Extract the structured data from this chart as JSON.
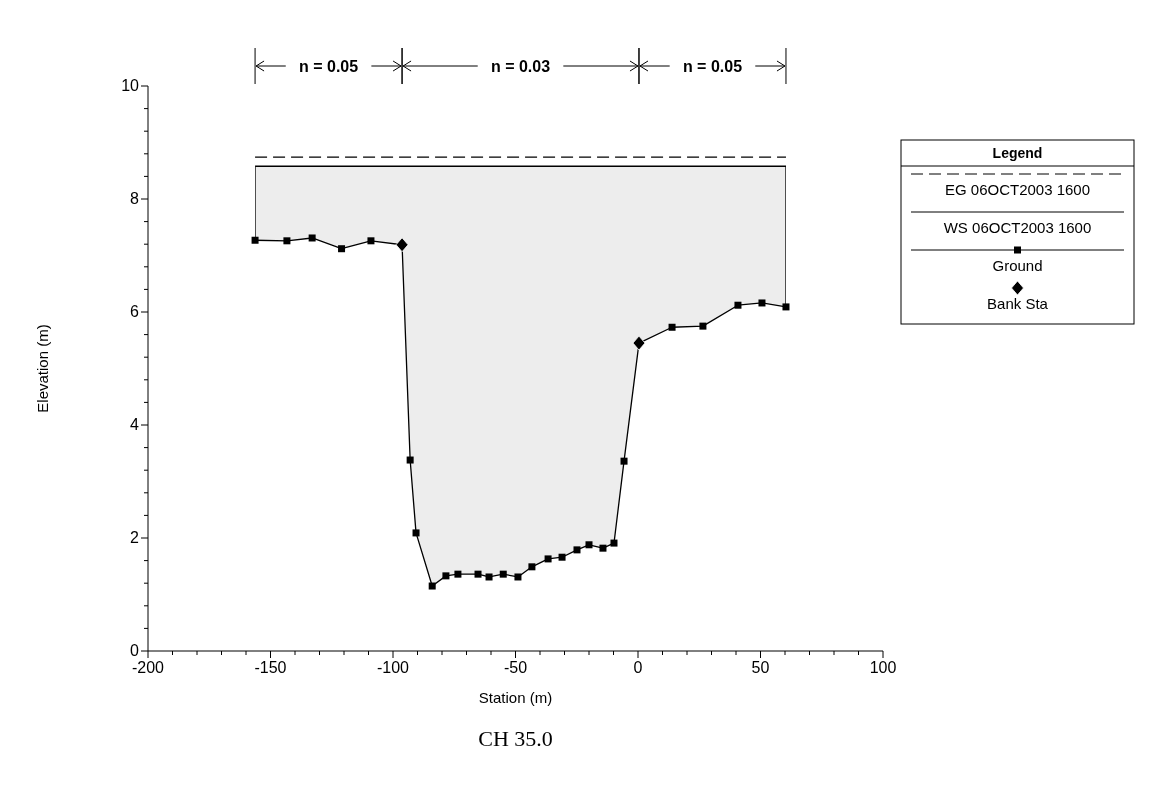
{
  "chart_data": {
    "type": "line",
    "title": "CH 35.0",
    "xlabel": "Station (m)",
    "ylabel": "Elevation (m)",
    "legend_title": "Legend",
    "legend": "top right",
    "annotations": [
      "n = 0.05",
      "n = 0.03",
      "n = 0.05"
    ],
    "xlim": [
      -200,
      100
    ],
    "ylim": [
      0,
      10
    ],
    "xticks": [
      -200,
      {
        "value": -190,
        "label": null
      },
      {
        "value": -180,
        "label": null
      },
      {
        "value": -170,
        "label": null
      },
      {
        "value": -160,
        "label": null
      },
      -150,
      {
        "value": -140,
        "label": null
      },
      {
        "value": -130,
        "label": null
      },
      {
        "value": -120,
        "label": null
      },
      {
        "value": -110,
        "label": null
      },
      -100,
      {
        "value": -90,
        "label": null
      },
      {
        "value": -80,
        "label": null
      },
      {
        "value": -70,
        "label": null
      },
      {
        "value": -60,
        "label": null
      },
      -50,
      {
        "value": -40,
        "label": null
      },
      {
        "value": -30,
        "label": null
      },
      {
        "value": -20,
        "label": null
      },
      {
        "value": -10,
        "label": null
      },
      0,
      {
        "value": 10,
        "label": null
      },
      {
        "value": 20,
        "label": null
      },
      {
        "value": 30,
        "label": null
      },
      {
        "value": 40,
        "label": null
      },
      50,
      {
        "value": 60,
        "label": null
      },
      {
        "value": 70,
        "label": null
      },
      {
        "value": 80,
        "label": null
      },
      {
        "value": 90,
        "label": null
      },
      100
    ],
    "yticks": [
      0,
      {
        "value": 0.4,
        "label": null
      },
      {
        "value": 0.8,
        "label": null
      },
      {
        "value": 1.2,
        "label": null
      },
      {
        "value": 1.6,
        "label": null
      },
      2,
      {
        "value": 2.4,
        "label": null
      },
      {
        "value": 2.8,
        "label": null
      },
      {
        "value": 3.2,
        "label": null
      },
      {
        "value": 3.6,
        "label": null
      },
      4,
      {
        "value": 4.4,
        "label": null
      },
      {
        "value": 4.8,
        "label": null
      },
      {
        "value": 5.2,
        "label": null
      },
      {
        "value": 5.6,
        "label": null
      },
      6,
      {
        "value": 6.4,
        "label": null
      },
      {
        "value": 6.8,
        "label": null
      },
      {
        "value": 7.2,
        "label": null
      },
      {
        "value": 7.6,
        "label": null
      },
      8,
      {
        "value": 8.4,
        "label": null
      },
      {
        "value": 8.8,
        "label": null
      },
      {
        "value": 9.2,
        "label": null
      },
      {
        "value": 9.6,
        "label": null
      },
      10
    ],
    "series": [
      {
        "name": "EG 06OCT2003 1600",
        "color": "#000000",
        "line_style": "dashed",
        "marker": "none",
        "x": [
          -156.3,
          60.4
        ],
        "values": [
          8.74,
          8.74
        ]
      },
      {
        "name": "WS 06OCT2003 1600",
        "type": "area",
        "color": "#000000",
        "line_style": "solid",
        "marker": "none",
        "x": [
          -156.3,
          60.4
        ],
        "values": [
          8.58,
          8.58
        ]
      },
      {
        "name": "Ground",
        "color": "#000000",
        "line_style": "solid",
        "marker": "square",
        "x": [
          -156.3,
          -143.3,
          -133,
          -121,
          -109,
          -96.3,
          -93,
          -90.6,
          -84,
          -78.4,
          -73.5,
          -65.3,
          -60.8,
          -55,
          -49,
          -43.3,
          -36.7,
          -31,
          -24.9,
          -20,
          -14.3,
          -9.8,
          -5.7,
          0.4,
          13.9,
          26.5,
          40.8,
          50.6,
          60.4
        ],
        "values": [
          7.27,
          7.26,
          7.31,
          7.12,
          7.26,
          7.19,
          3.38,
          2.09,
          1.15,
          1.33,
          1.36,
          1.36,
          1.31,
          1.36,
          1.31,
          1.49,
          1.63,
          1.66,
          1.79,
          1.88,
          1.82,
          1.91,
          3.36,
          5.45,
          5.73,
          5.75,
          6.12,
          6.16,
          6.09
        ]
      },
      {
        "name": "Bank Sta",
        "type": "scatter",
        "color": "#000000",
        "marker": "diamond",
        "x": [
          -96.3,
          0.4
        ],
        "values": [
          7.19,
          5.45
        ]
      }
    ]
  }
}
